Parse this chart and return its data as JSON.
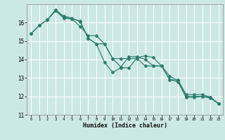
{
  "xlabel": "Humidex (Indice chaleur)",
  "bg_color": "#cce8e4",
  "grid_color": "#ffffff",
  "line_color": "#2e7d6e",
  "xlim": [
    -0.5,
    23.5
  ],
  "ylim": [
    11,
    17
  ],
  "yticks": [
    11,
    12,
    13,
    14,
    15,
    16
  ],
  "xticks": [
    0,
    1,
    2,
    3,
    4,
    5,
    6,
    7,
    8,
    9,
    10,
    11,
    12,
    13,
    14,
    15,
    16,
    17,
    18,
    19,
    20,
    21,
    22,
    23
  ],
  "line1_x": [
    0,
    1,
    2,
    3,
    4,
    5,
    6,
    7,
    8,
    9,
    10,
    11,
    12,
    13,
    14,
    15,
    16,
    17,
    18,
    19,
    20,
    21,
    22,
    23
  ],
  "line1_y": [
    15.4,
    15.85,
    16.15,
    16.65,
    16.25,
    16.2,
    16.1,
    15.15,
    14.85,
    13.85,
    13.3,
    13.55,
    13.55,
    14.1,
    14.2,
    14.1,
    13.65,
    13.1,
    12.85,
    12.0,
    12.0,
    12.0,
    11.95,
    11.6
  ],
  "line2_x": [
    0,
    1,
    2,
    3,
    4,
    5,
    6,
    7,
    8,
    9,
    10,
    11,
    12,
    13,
    14,
    15,
    16,
    17,
    18,
    19,
    20,
    21,
    22,
    23
  ],
  "line2_y": [
    15.4,
    15.85,
    16.15,
    16.65,
    16.3,
    16.2,
    15.8,
    15.3,
    15.3,
    14.85,
    14.05,
    13.6,
    14.15,
    14.15,
    14.0,
    13.65,
    13.65,
    12.9,
    12.8,
    11.95,
    11.95,
    12.0,
    11.9,
    11.6
  ],
  "line3_x": [
    2,
    3,
    4,
    5,
    6,
    7,
    8,
    9,
    10,
    11,
    12,
    13,
    14,
    15,
    16,
    17,
    18,
    19,
    20,
    21,
    22,
    23
  ],
  "line3_y": [
    16.15,
    16.7,
    16.35,
    16.25,
    16.05,
    15.15,
    14.85,
    14.85,
    14.05,
    14.05,
    14.05,
    14.05,
    13.65,
    13.65,
    13.65,
    12.9,
    12.9,
    12.1,
    12.1,
    12.1,
    11.95,
    11.6
  ]
}
